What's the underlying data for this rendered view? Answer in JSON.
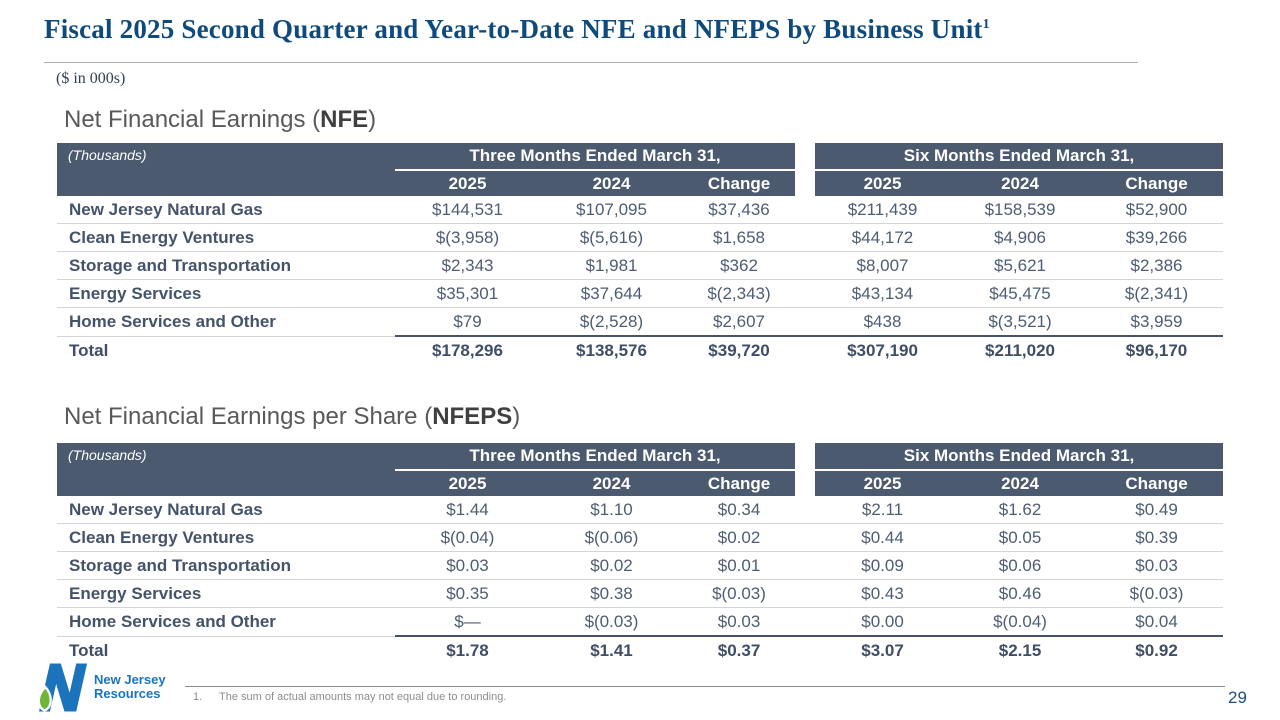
{
  "slide": {
    "title": "Fiscal 2025 Second Quarter and Year-to-Date NFE and NFEPS by Business Unit",
    "title_footnote_marker": "1",
    "subtitle": "($ in 000s)",
    "page_number": "29"
  },
  "logo": {
    "name": "New Jersey Resources",
    "line1": "New Jersey",
    "line2": "Resources"
  },
  "footnote": {
    "number": "1.",
    "text": "The sum of actual amounts may not equal due to rounding."
  },
  "colors": {
    "title_navy": "#0f4a7c",
    "table_header_bg": "#4b5a6e",
    "row_label_text": "#44536a",
    "value_text": "#4e5d73",
    "section_title_gray": "#595959",
    "row_divider": "#d4d4d4",
    "total_rule": "#44546a",
    "logo_blue": "#1b74bb",
    "logo_green": "#6fb53a",
    "page_number_blue": "#1f4e79"
  },
  "tables": [
    {
      "title_prefix": "Net Financial Earnings (",
      "title_acronym": "NFE",
      "title_suffix": ")",
      "corner_label": "(Thousands)",
      "groups": [
        "Three Months Ended March 31,",
        "Six Months Ended March 31,"
      ],
      "columns": [
        "2025",
        "2024",
        "Change",
        "2025",
        "2024",
        "Change"
      ],
      "rows": [
        {
          "label": "New Jersey Natural Gas",
          "values": [
            "$144,531",
            "$107,095",
            "$37,436",
            "$211,439",
            "$158,539",
            "$52,900"
          ],
          "is_total": false
        },
        {
          "label": "Clean Energy Ventures",
          "values": [
            "$(3,958)",
            "$(5,616)",
            "$1,658",
            "$44,172",
            "$4,906",
            "$39,266"
          ],
          "is_total": false
        },
        {
          "label": "Storage and Transportation",
          "values": [
            "$2,343",
            "$1,981",
            "$362",
            "$8,007",
            "$5,621",
            "$2,386"
          ],
          "is_total": false
        },
        {
          "label": "Energy Services",
          "values": [
            "$35,301",
            "$37,644",
            "$(2,343)",
            "$43,134",
            "$45,475",
            "$(2,341)"
          ],
          "is_total": false
        },
        {
          "label": "Home Services and Other",
          "values": [
            "$79",
            "$(2,528)",
            "$2,607",
            "$438",
            "$(3,521)",
            "$3,959"
          ],
          "is_total": false
        },
        {
          "label": "Total",
          "values": [
            "$178,296",
            "$138,576",
            "$39,720",
            "$307,190",
            "$211,020",
            "$96,170"
          ],
          "is_total": true
        }
      ]
    },
    {
      "title_prefix": "Net Financial Earnings per Share (",
      "title_acronym": "NFEPS",
      "title_suffix": ")",
      "corner_label": "(Thousands)",
      "groups": [
        "Three Months Ended March 31,",
        "Six Months Ended March 31,"
      ],
      "columns": [
        "2025",
        "2024",
        "Change",
        "2025",
        "2024",
        "Change"
      ],
      "rows": [
        {
          "label": "New Jersey Natural Gas",
          "values": [
            "$1.44",
            "$1.10",
            "$0.34",
            "$2.11",
            "$1.62",
            "$0.49"
          ],
          "is_total": false
        },
        {
          "label": "Clean Energy Ventures",
          "values": [
            "$(0.04)",
            "$(0.06)",
            "$0.02",
            "$0.44",
            "$0.05",
            "$0.39"
          ],
          "is_total": false
        },
        {
          "label": "Storage and Transportation",
          "values": [
            "$0.03",
            "$0.02",
            "$0.01",
            "$0.09",
            "$0.06",
            "$0.03"
          ],
          "is_total": false
        },
        {
          "label": "Energy Services",
          "values": [
            "$0.35",
            "$0.38",
            "$(0.03)",
            "$0.43",
            "$0.46",
            "$(0.03)"
          ],
          "is_total": false
        },
        {
          "label": "Home Services and Other",
          "values": [
            "$—",
            "$(0.03)",
            "$0.03",
            "$0.00",
            "$(0.04)",
            "$0.04"
          ],
          "is_total": false
        },
        {
          "label": "Total",
          "values": [
            "$1.78",
            "$1.41",
            "$0.37",
            "$3.07",
            "$2.15",
            "$0.92"
          ],
          "is_total": true
        }
      ]
    }
  ]
}
